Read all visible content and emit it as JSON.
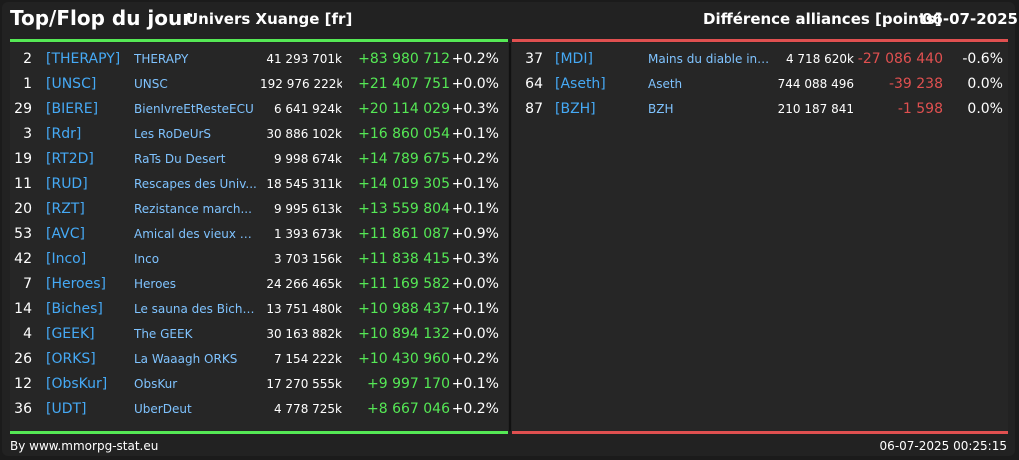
{
  "header": {
    "title": "Top/Flop du jour",
    "universe": "Univers Xuange [fr]",
    "category": "Différence alliances [points]",
    "date": "06-07-2025"
  },
  "top": [
    {
      "rank": "2",
      "tag": "[THERAPY]",
      "name": "THERAPY",
      "points": "41 293 701k",
      "diff": "+83 980 712",
      "pct": "+0.2%"
    },
    {
      "rank": "1",
      "tag": "[UNSC]",
      "name": "UNSC",
      "points": "192 976 222k",
      "diff": "+21 407 751",
      "pct": "+0.0%"
    },
    {
      "rank": "29",
      "tag": "[BIERE]",
      "name": "BienIvreEtResteECU",
      "points": "6 641 924k",
      "diff": "+20 114 029",
      "pct": "+0.3%"
    },
    {
      "rank": "3",
      "tag": "[Rdr]",
      "name": "Les RoDeUrS",
      "points": "30 886 102k",
      "diff": "+16 860 054",
      "pct": "+0.1%"
    },
    {
      "rank": "19",
      "tag": "[RT2D]",
      "name": "RaTs Du Desert",
      "points": "9 998 674k",
      "diff": "+14 789 675",
      "pct": "+0.2%"
    },
    {
      "rank": "11",
      "tag": "[RUD]",
      "name": "Rescapes des Univ...",
      "points": "18 545 311k",
      "diff": "+14 019 305",
      "pct": "+0.1%"
    },
    {
      "rank": "20",
      "tag": "[RZT]",
      "name": "Rezistance march...",
      "points": "9 995 613k",
      "diff": "+13 559 804",
      "pct": "+0.1%"
    },
    {
      "rank": "53",
      "tag": "[AVC]",
      "name": "Amical des vieux co...",
      "points": "1 393 673k",
      "diff": "+11 861 087",
      "pct": "+0.9%"
    },
    {
      "rank": "42",
      "tag": "[Inco]",
      "name": "Inco",
      "points": "3 703 156k",
      "diff": "+11 838 415",
      "pct": "+0.3%"
    },
    {
      "rank": "7",
      "tag": "[Heroes]",
      "name": "Heroes",
      "points": "24 266 465k",
      "diff": "+11 169 582",
      "pct": "+0.0%"
    },
    {
      "rank": "14",
      "tag": "[Biches]",
      "name": "Le sauna des Biche...",
      "points": "13 751 480k",
      "diff": "+10 988 437",
      "pct": "+0.1%"
    },
    {
      "rank": "4",
      "tag": "[GEEK]",
      "name": "The GEEK",
      "points": "30 163 882k",
      "diff": "+10 894 132",
      "pct": "+0.0%"
    },
    {
      "rank": "26",
      "tag": "[ORKS]",
      "name": "La Waaagh ORKS",
      "points": "7 154 222k",
      "diff": "+10 430 960",
      "pct": "+0.2%"
    },
    {
      "rank": "12",
      "tag": "[ObsKur]",
      "name": "ObsKur",
      "points": "17 270 555k",
      "diff": "+9 997 170",
      "pct": "+0.1%"
    },
    {
      "rank": "36",
      "tag": "[UDT]",
      "name": "UberDeut",
      "points": "4 778 725k",
      "diff": "+8 667 046",
      "pct": "+0.2%"
    }
  ],
  "flop": [
    {
      "rank": "37",
      "tag": "[MDI]",
      "name": "Mains du diable inco...",
      "points": "4 718 620k",
      "diff": "-27 086 440",
      "pct": "-0.6%"
    },
    {
      "rank": "64",
      "tag": "[Aseth]",
      "name": "Aseth",
      "points": "744 088 496",
      "diff": "-39 238",
      "pct": "0.0%"
    },
    {
      "rank": "87",
      "tag": "[BZH]",
      "name": "BZH",
      "points": "210 187 841",
      "diff": "-1 598",
      "pct": "0.0%"
    }
  ],
  "footer": {
    "source": "By www.mmorpg-stat.eu",
    "timestamp": "06-07-2025 00:25:15"
  },
  "colors": {
    "positive": "#55e855",
    "negative": "#e05050",
    "tag": "#45a9f5",
    "name": "#7fc3ff"
  }
}
